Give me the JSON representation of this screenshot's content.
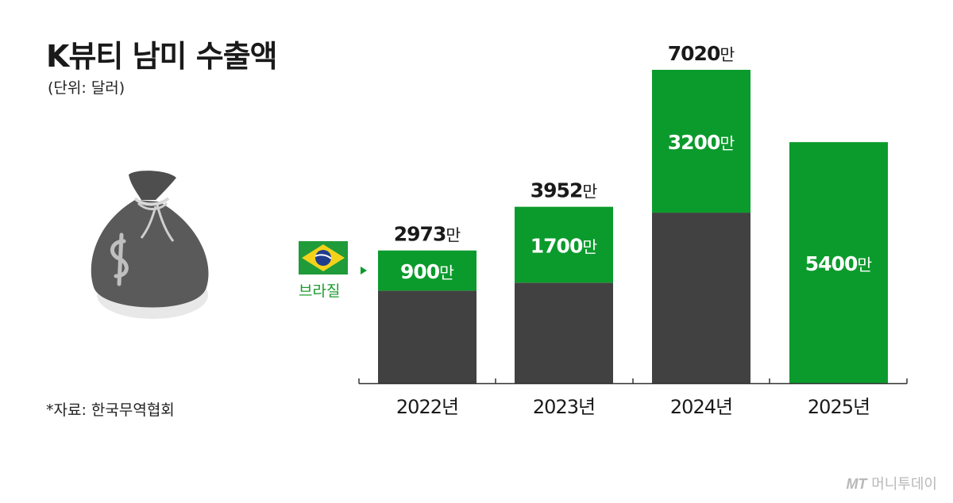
{
  "title": "K뷰티 남미 수출액",
  "subtitle": "(단위: 달러)",
  "source": "*자료: 한국무역협회",
  "watermark": {
    "logo": "MT",
    "name": "머니투데이"
  },
  "legend": {
    "brazil_label": "브라질"
  },
  "colors": {
    "brazil": "#0b9b2c",
    "other": "#414141",
    "axis": "#333333",
    "bag": "#5a5a5a"
  },
  "icons": [
    "money-bag-icon",
    "dollar-icon",
    "brazil-flag-icon",
    "arrow-right-icon"
  ],
  "unit_suffix": "만",
  "chart_data": {
    "type": "bar",
    "stacked": true,
    "categories": [
      "2022년",
      "2023년",
      "2024년",
      "2025년"
    ],
    "series": [
      {
        "name": "브라질",
        "values": [
          900,
          1700,
          3200,
          5400
        ]
      },
      {
        "values": [
          2073,
          2252,
          3820,
          null
        ]
      }
    ],
    "totals": [
      2973,
      3952,
      7020,
      null
    ],
    "segment_labels": [
      "900",
      "1700",
      "3200",
      "5400"
    ],
    "total_labels": [
      "2973",
      "3952",
      "7020",
      ""
    ],
    "title": "K뷰티 남미 수출액",
    "ylabel": "",
    "xlabel": "",
    "ylim": [
      0,
      7020
    ],
    "grid": false
  }
}
